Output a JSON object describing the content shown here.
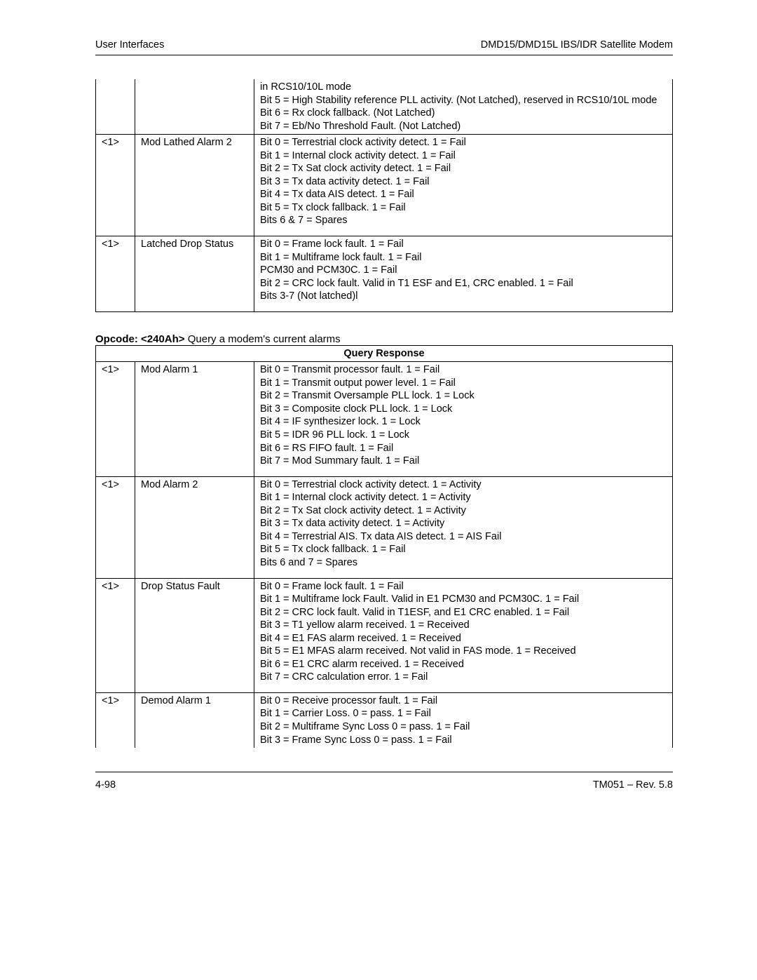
{
  "header": {
    "left": "User Interfaces",
    "right": "DMD15/DMD15L IBS/IDR Satellite Modem"
  },
  "table1": {
    "rows": [
      {
        "c1": "",
        "c2": "",
        "c3": "in RCS10/10L mode\nBit 5 = High Stability reference PLL activity. (Not Latched), reserved in RCS10/10L mode\nBit 6 = Rx clock fallback. (Not Latched)\nBit 7 = Eb/No Threshold Fault. (Not Latched)"
      },
      {
        "c1": "<1>",
        "c2": "Mod Lathed Alarm 2",
        "c3": "Bit 0 = Terrestrial clock activity detect. 1 = Fail\nBit 1 = Internal clock activity detect. 1 = Fail\nBit 2 = Tx Sat clock activity detect. 1 = Fail\nBit 3 = Tx data activity detect. 1 = Fail\nBit 4 = Tx data AIS detect. 1 = Fail\nBit 5 = Tx clock fallback. 1 = Fail\nBits 6 & 7 = Spares"
      },
      {
        "c1": "<1>",
        "c2": "Latched Drop Status",
        "c3": "Bit 0 = Frame lock fault. 1 = Fail\nBit 1 = Multiframe lock fault. 1 = Fail\nPCM30 and PCM30C. 1 = Fail\nBit 2 = CRC lock fault. Valid in T1 ESF and E1, CRC enabled. 1 = Fail\nBits 3-7 (Not latched)l"
      }
    ]
  },
  "opcode": {
    "label_bold": "Opcode: <240Ah>",
    "label_rest": " Query a modem's current alarms"
  },
  "table2": {
    "header": "Query Response",
    "rows": [
      {
        "c1": "<1>",
        "c2": "Mod Alarm 1",
        "c3": "Bit 0 = Transmit processor fault. 1 = Fail\nBit 1 = Transmit output power level. 1 = Fail\nBit 2 = Transmit Oversample PLL lock. 1 = Lock\nBit 3 = Composite clock PLL lock. 1 = Lock\nBit 4 = IF synthesizer lock. 1 = Lock\nBit 5 = IDR 96 PLL lock. 1 = Lock\nBit 6 = RS FIFO fault. 1 = Fail\nBit 7 = Mod Summary fault. 1 = Fail"
      },
      {
        "c1": "<1>",
        "c2": "Mod Alarm 2",
        "c3": "Bit 0 = Terrestrial clock activity detect. 1 = Activity\nBit 1 = Internal clock activity detect. 1 = Activity\nBit 2 = Tx Sat clock activity detect. 1 = Activity\nBit 3 = Tx data activity detect. 1 = Activity\nBit 4 = Terrestrial AIS. Tx data AIS detect. 1 = AIS Fail\nBit 5 = Tx clock fallback. 1 = Fail\nBits 6 and 7 = Spares"
      },
      {
        "c1": "<1>",
        "c2": "Drop Status Fault",
        "c3": "Bit 0 = Frame lock fault. 1 = Fail\nBit 1 = Multiframe lock Fault. Valid in E1 PCM30 and PCM30C. 1 = Fail\nBit 2 = CRC lock fault. Valid in T1ESF, and E1 CRC enabled. 1 = Fail\nBit 3 = T1 yellow alarm received. 1 = Received\nBit 4 = E1 FAS alarm received. 1 = Received\nBit 5 = E1 MFAS alarm received. Not valid in FAS mode. 1 = Received\nBit 6 = E1 CRC alarm received. 1 = Received\nBit 7 = CRC calculation error. 1 = Fail"
      },
      {
        "c1": "<1>",
        "c2": "Demod Alarm 1",
        "c3": "Bit 0 = Receive processor fault. 1 = Fail\nBit 1 = Carrier Loss. 0 = pass. 1 = Fail\nBit 2 = Multiframe Sync Loss 0 = pass. 1 = Fail\nBit 3 = Frame Sync Loss 0 = pass. 1 = Fail"
      }
    ]
  },
  "footer": {
    "left": "4-98",
    "right": "TM051 – Rev. 5.8"
  }
}
